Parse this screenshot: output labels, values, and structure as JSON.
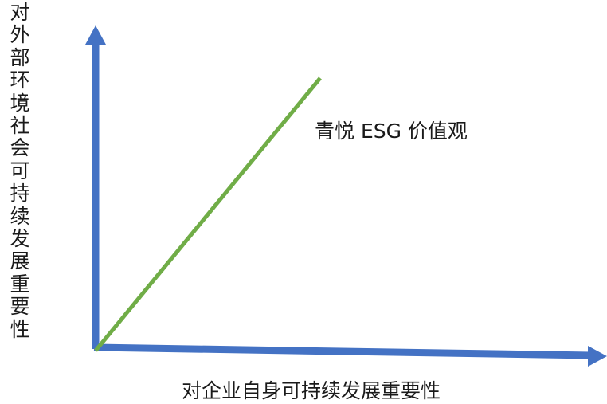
{
  "diagram": {
    "y_axis_label": "对外部环境社会可持续发展重要性",
    "x_axis_label": "对企业自身可持续发展重要性",
    "line_label": "青悦 ESG 价值观",
    "colors": {
      "axis": "#4472c4",
      "line": "#70ad47",
      "text": "#1a1a1a"
    }
  }
}
